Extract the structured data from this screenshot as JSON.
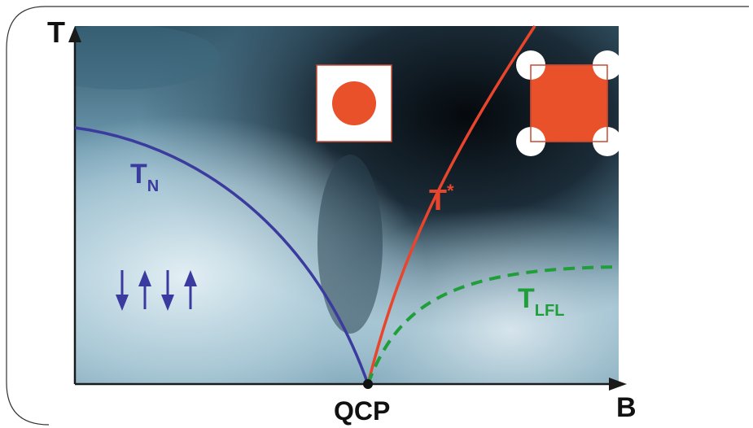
{
  "axes": {
    "y_label": "T",
    "x_label": "B",
    "origin_label": "QCP"
  },
  "curves": {
    "neel": {
      "label_main": "T",
      "label_sub": "N",
      "color": "#3b3a9e"
    },
    "t_star": {
      "label_main": "T",
      "label_sup": "*",
      "color": "#e8452c"
    },
    "lfl": {
      "label_main": "T",
      "label_sub": "LFL",
      "color": "#1f9e3a"
    }
  },
  "insets": {
    "small_fermi_surface": {
      "fill": "#e8512a",
      "background": "#ffffff"
    },
    "large_fermi_surface": {
      "fill": "#e8512a",
      "background": "#ffffff"
    }
  },
  "spin_arrows": {
    "sequence": [
      "down",
      "up",
      "down",
      "up"
    ],
    "color": "#3b3a9e"
  },
  "colors": {
    "sky_light": "#c5dfe9",
    "sky_mid": "#6e98ad",
    "storm_dark": "#0f1a23",
    "axis": "#1a1a1a",
    "qcp_dot": "#111111"
  }
}
